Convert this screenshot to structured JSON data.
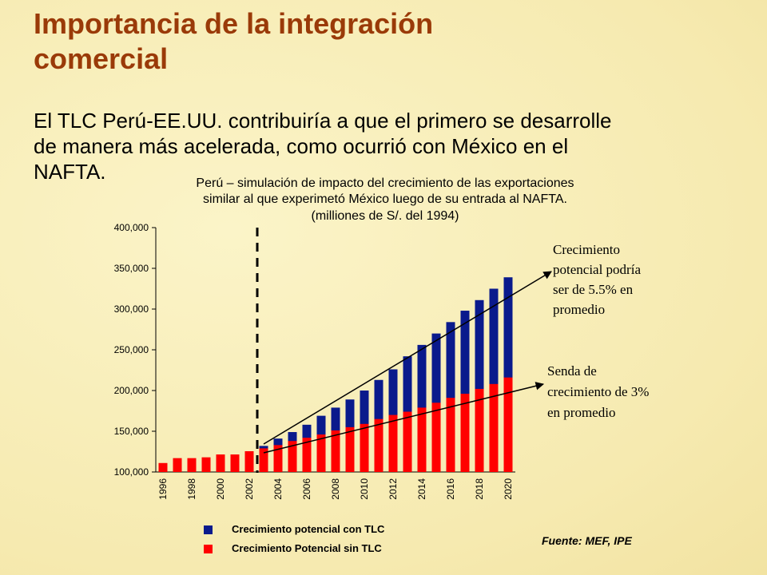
{
  "header": {
    "title_lines": [
      "Importancia de la integración",
      "comercial"
    ],
    "text_lines": [
      "El TLC Perú-EE.UU. contribuiría a que el primero se desarrolle",
      "de manera más acelerada, como ocurrió con México en el",
      "NAFTA."
    ]
  },
  "chart_data": {
    "type": "bar",
    "title_lines": [
      "Perú – simulación de impacto del crecimiento de las exportaciones",
      "similar al que experimetó México luego de su entrada al NAFTA.",
      "(milliones de S/. del 1994)"
    ],
    "categories": [
      "1996",
      null,
      "1998",
      null,
      "2000",
      null,
      "2002",
      null,
      "2004",
      null,
      "2006",
      null,
      "2008",
      null,
      "2010",
      null,
      "2012",
      null,
      "2014",
      null,
      "2016",
      null,
      "2018",
      null,
      "2020"
    ],
    "series": [
      {
        "name": "Crecimiento potencial con TLC",
        "color": "#0a1a8c",
        "values": [
          null,
          null,
          null,
          null,
          null,
          null,
          null,
          132000,
          141000,
          149000,
          158000,
          169000,
          179000,
          189000,
          200000,
          213000,
          226000,
          242000,
          256000,
          270000,
          284000,
          298000,
          311000,
          325000,
          339000
        ]
      },
      {
        "name": "Crecimiento Potencial sin TLC",
        "color": "#ff0000",
        "values": [
          111000,
          117000,
          117000,
          118000,
          121500,
          121500,
          125500,
          129000,
          133000,
          138000,
          142000,
          146000,
          151000,
          155000,
          159000,
          165000,
          170000,
          174000,
          179000,
          185000,
          191000,
          196000,
          202000,
          208000,
          216000
        ]
      }
    ],
    "ylim": [
      100000,
      400000
    ],
    "yticks": [
      {
        "value": 100000,
        "label": "100,000"
      },
      {
        "value": 150000,
        "label": "150,000"
      },
      {
        "value": 200000,
        "label": "200,000"
      },
      {
        "value": 250000,
        "label": "250,000"
      },
      {
        "value": 300000,
        "label": "300,000"
      },
      {
        "value": 350000,
        "label": "350,000"
      },
      {
        "value": 400000,
        "label": "400,000"
      }
    ],
    "annotations": [
      {
        "lines": [
          "Crecimiento",
          "potencial podría",
          "ser de 5.5% en",
          "promedio"
        ]
      },
      {
        "lines": [
          "Senda de",
          "crecimiento de  3%",
          "en promedio"
        ]
      }
    ],
    "source": "Fuente: MEF, IPE"
  }
}
